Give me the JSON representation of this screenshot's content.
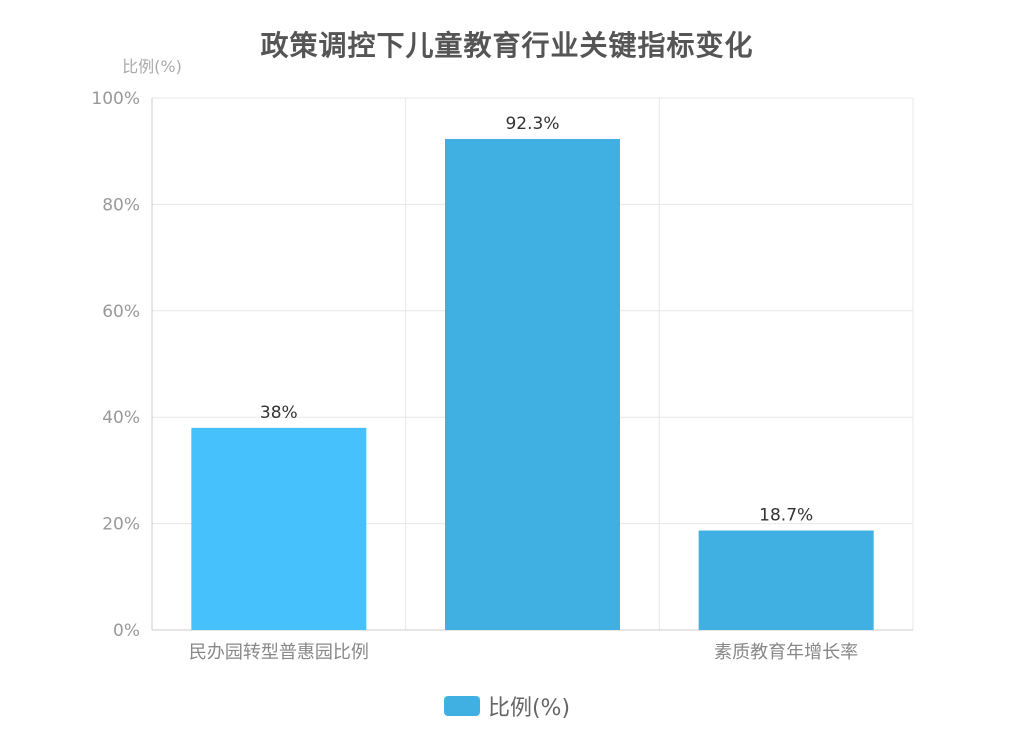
{
  "chart_data": {
    "type": "bar",
    "title": "政策调控下儿童教育行业关键指标变化",
    "ylabel": "比例(%)",
    "xlabel": "",
    "categories": [
      "民办园转型普惠园比例",
      "",
      "素质教育年增长率"
    ],
    "values": [
      38,
      92.3,
      18.7
    ],
    "data_labels": [
      "38%",
      "92.3%",
      "18.7%"
    ],
    "ylim": [
      0,
      100
    ],
    "yticks": [
      0,
      20,
      40,
      60,
      80,
      100
    ],
    "ytick_labels": [
      "0%",
      "20%",
      "40%",
      "60%",
      "80%",
      "100%"
    ],
    "series": [
      {
        "name": "比例(%)",
        "values": [
          38,
          92.3,
          18.7
        ]
      }
    ],
    "bar_colors": [
      "#47c1fb",
      "#40b0e3",
      "#40b0e3"
    ],
    "legend_color": "#40b0e3",
    "legend_position": "bottom-center",
    "grid": true
  }
}
